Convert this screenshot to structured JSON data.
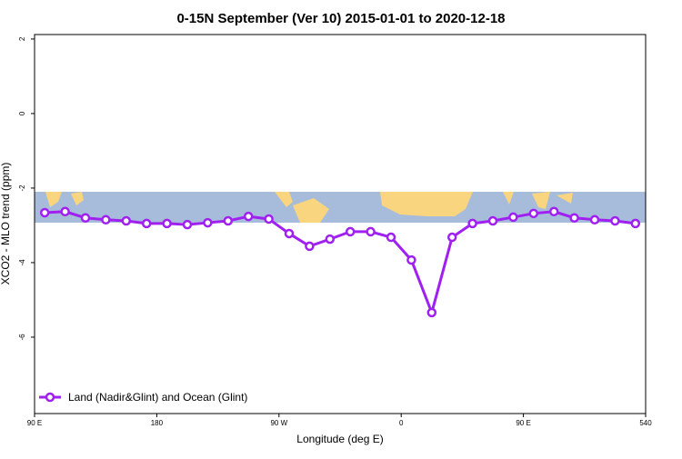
{
  "chart_data": {
    "type": "line",
    "title": "0-15N September (Ver 10)   2015-01-01 to 2020-12-18",
    "x_label": "Longitude (deg E)",
    "y_label": "XCO2 - MLO trend (ppm)",
    "xlim": [
      90,
      540
    ],
    "ylim": [
      -8.05,
      2.12
    ],
    "xticks": [
      {
        "value": 90,
        "label": "90 E"
      },
      180,
      {
        "value": 270,
        "label": "90 W"
      },
      {
        "value": 360,
        "label": "0"
      },
      {
        "value": 450,
        "label": "90 E"
      },
      540
    ],
    "yticks": [
      2,
      0,
      -2,
      -4,
      -6
    ],
    "x": [
      97.5,
      112.5,
      127.5,
      142.5,
      157.5,
      172.5,
      187.5,
      202.5,
      217.5,
      232.5,
      247.5,
      262.5,
      277.5,
      292.5,
      307.5,
      322.5,
      337.5,
      352.5,
      367.5,
      382.5,
      397.5,
      412.5,
      427.5,
      442.5,
      457.5,
      472.5,
      487.5,
      502.5,
      517.5,
      532.5
    ],
    "series": [
      {
        "name": "Land (Nadir&Glint) and Ocean (Glint)",
        "color": "#a020f0",
        "values": [
          -2.66,
          -2.63,
          -2.8,
          -2.85,
          -2.88,
          -2.95,
          -2.95,
          -2.98,
          -2.93,
          -2.88,
          -2.76,
          -2.83,
          -3.22,
          -3.56,
          -3.37,
          -3.17,
          -3.17,
          -3.32,
          -3.93,
          -5.34,
          -3.32,
          -2.95,
          -2.88,
          -2.78,
          -2.68,
          -2.63,
          -2.8,
          -2.85,
          -2.88,
          -2.95
        ]
      }
    ],
    "legend": "bottom-left"
  }
}
